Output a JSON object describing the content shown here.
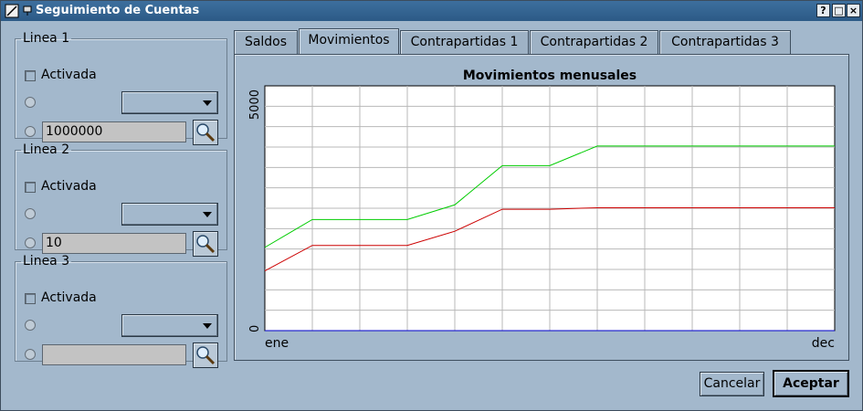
{
  "window": {
    "title": "Seguimiento de Cuentas"
  },
  "titlebar_buttons": [
    "?",
    "□",
    "×"
  ],
  "lines": [
    {
      "legend": "Linea 1",
      "activada_label": "Activada",
      "field_value": "1000000"
    },
    {
      "legend": "Linea 2",
      "activada_label": "Activada",
      "field_value": "10"
    },
    {
      "legend": "Linea 3",
      "activada_label": "Activada",
      "field_value": ""
    }
  ],
  "tabs": [
    "Saldos",
    "Movimientos",
    "Contrapartidas 1",
    "Contrapartidas 2",
    "Contrapartidas 3"
  ],
  "active_tab": "Movimientos",
  "buttons": {
    "cancel": "Cancelar",
    "accept": "Aceptar"
  },
  "chart_data": {
    "type": "line",
    "title": "Movimientos menusales",
    "x_tick_labels": [
      "ene",
      "dec"
    ],
    "y_tick_labels": [
      "0",
      "5000"
    ],
    "ylim": [
      0,
      5000
    ],
    "grid": true,
    "x": [
      1,
      2,
      3,
      4,
      5,
      6,
      7,
      8,
      9,
      10,
      11,
      12,
      13
    ],
    "series": [
      {
        "color": "#00cc00",
        "values": [
          1700,
          2270,
          2270,
          2270,
          2570,
          3370,
          3370,
          3770,
          3770,
          3770,
          3770,
          3770,
          3770
        ]
      },
      {
        "color": "#cc0000",
        "values": [
          1220,
          1740,
          1740,
          1740,
          2030,
          2480,
          2480,
          2510,
          2510,
          2510,
          2510,
          2510,
          2510
        ]
      },
      {
        "color": "#0000cc",
        "values": [
          0,
          0,
          0,
          0,
          0,
          0,
          0,
          0,
          0,
          0,
          0,
          0,
          0
        ]
      }
    ]
  }
}
